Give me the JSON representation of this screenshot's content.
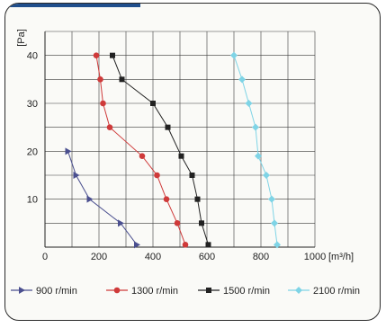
{
  "chart_data": {
    "type": "line",
    "title": "",
    "xlabel": "[m³/h]",
    "ylabel": "[Pa]",
    "xlim": [
      0,
      1000
    ],
    "ylim": [
      0,
      45
    ],
    "xticks": [
      0,
      200,
      400,
      600,
      800,
      1000
    ],
    "xtick_labels": [
      "0",
      "200",
      "400",
      "600",
      "800",
      "1000"
    ],
    "yticks": [
      10,
      20,
      30,
      40
    ],
    "ytick_labels": [
      "10",
      "20",
      "30",
      "40"
    ],
    "grid": true,
    "legend_position": "bottom",
    "series": [
      {
        "name": "900 r/min",
        "color": "#4a4f8f",
        "marker": "triangle",
        "points": [
          [
            85,
            20
          ],
          [
            115,
            15
          ],
          [
            165,
            10
          ],
          [
            280,
            5
          ],
          [
            340,
            0.5
          ]
        ]
      },
      {
        "name": "1300 r/min",
        "color": "#cf3a3a",
        "marker": "circle",
        "points": [
          [
            190,
            40
          ],
          [
            205,
            35
          ],
          [
            215,
            30
          ],
          [
            240,
            25
          ],
          [
            360,
            19
          ],
          [
            415,
            15
          ],
          [
            450,
            10
          ],
          [
            490,
            5
          ],
          [
            520,
            0.5
          ]
        ]
      },
      {
        "name": "1500 r/min",
        "color": "#222222",
        "marker": "square",
        "points": [
          [
            250,
            40
          ],
          [
            285,
            35
          ],
          [
            400,
            30
          ],
          [
            455,
            25
          ],
          [
            505,
            19
          ],
          [
            545,
            15
          ],
          [
            565,
            10
          ],
          [
            580,
            5
          ],
          [
            605,
            0.5
          ]
        ]
      },
      {
        "name": "2100 r/min",
        "color": "#7fd4e6",
        "marker": "diamond",
        "points": [
          [
            700,
            40
          ],
          [
            730,
            35
          ],
          [
            755,
            30
          ],
          [
            780,
            25
          ],
          [
            790,
            19
          ],
          [
            820,
            15
          ],
          [
            840,
            10
          ],
          [
            850,
            5
          ],
          [
            860,
            0.5
          ]
        ]
      }
    ]
  }
}
